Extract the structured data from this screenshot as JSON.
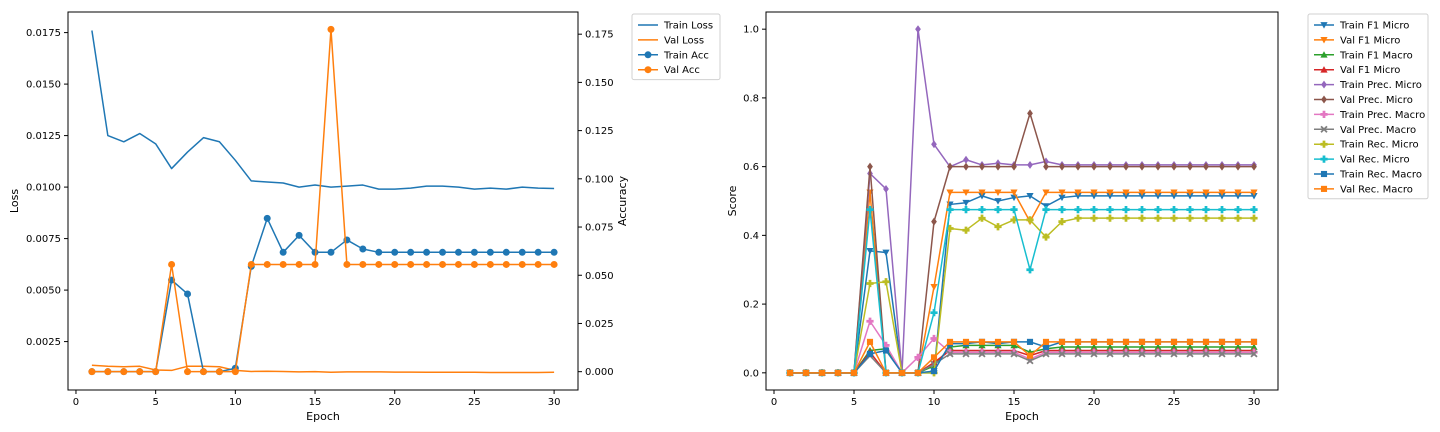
{
  "chart_data": [
    {
      "type": "line",
      "xlabel": "Epoch",
      "ylabel": "Loss",
      "ylabel_right": "Accuracy",
      "xlim": [
        -0.5,
        31.5
      ],
      "ylim": [
        0.00015,
        0.0185
      ],
      "ylim_right": [
        -0.0095,
        0.1865
      ],
      "x_ticks": [
        0,
        5,
        10,
        15,
        20,
        25,
        30
      ],
      "y_ticks": [
        0.0025,
        0.005,
        0.0075,
        0.01,
        0.0125,
        0.015,
        0.0175
      ],
      "y_ticks_right": [
        0,
        0.025,
        0.05,
        0.075,
        0.1,
        0.125,
        0.15,
        0.175
      ],
      "y_tick_labels": [
        "0.0025",
        "0.0050",
        "0.0075",
        "0.0100",
        "0.0125",
        "0.0150",
        "0.0175"
      ],
      "y_tick_labels_right": [
        "0.000",
        "0.025",
        "0.050",
        "0.075",
        "0.100",
        "0.125",
        "0.150",
        "0.175"
      ],
      "legend_position": "outside-upper-right",
      "grid": false,
      "x": [
        1,
        2,
        3,
        4,
        5,
        6,
        7,
        8,
        9,
        10,
        11,
        12,
        13,
        14,
        15,
        16,
        17,
        18,
        19,
        20,
        21,
        22,
        23,
        24,
        25,
        26,
        27,
        28,
        29,
        30
      ],
      "series": [
        {
          "name": "Train Loss",
          "axis": "left",
          "color": "#1f77b4",
          "marker": "none",
          "values": [
            0.0176,
            0.0125,
            0.0122,
            0.0126,
            0.0121,
            0.0109,
            0.0117,
            0.0124,
            0.0122,
            0.0113,
            0.0103,
            0.01025,
            0.0102,
            0.01,
            0.0101,
            0.01,
            0.01005,
            0.0101,
            0.0099,
            0.0099,
            0.00995,
            0.01005,
            0.01005,
            0.01,
            0.0099,
            0.00995,
            0.0099,
            0.01,
            0.00995,
            0.00993
          ]
        },
        {
          "name": "Val Loss",
          "axis": "left",
          "color": "#ff7f0e",
          "marker": "none",
          "values": [
            0.00135,
            0.0013,
            0.00128,
            0.0013,
            0.00112,
            0.0011,
            0.0013,
            0.0013,
            0.00128,
            0.0011,
            0.00105,
            0.00106,
            0.00105,
            0.00103,
            0.00104,
            0.00101,
            0.00103,
            0.00103,
            0.00103,
            0.00102,
            0.00102,
            0.00101,
            0.00101,
            0.00101,
            0.00101,
            0.001,
            0.001,
            0.001,
            0.001,
            0.00101
          ]
        },
        {
          "name": "Train Acc",
          "axis": "right",
          "color": "#1f77b4",
          "marker": "o",
          "values": [
            0,
            0,
            0,
            0,
            0,
            0.0475,
            0.0403,
            0,
            0,
            0.0018,
            0.0546,
            0.0795,
            0.0619,
            0.0707,
            0.0619,
            0.0619,
            0.0683,
            0.0636,
            0.0619,
            0.0619,
            0.0619,
            0.0619,
            0.0619,
            0.0619,
            0.0619,
            0.0619,
            0.0619,
            0.0619,
            0.0619,
            0.0619
          ]
        },
        {
          "name": "Val Acc",
          "axis": "right",
          "color": "#ff7f0e",
          "marker": "o",
          "values": [
            0,
            0,
            0,
            0,
            0,
            0.0556,
            0,
            0,
            0,
            0,
            0.0556,
            0.0556,
            0.0556,
            0.0556,
            0.0556,
            0.1775,
            0.0556,
            0.0556,
            0.0556,
            0.0556,
            0.0556,
            0.0556,
            0.0556,
            0.0556,
            0.0556,
            0.0556,
            0.0556,
            0.0556,
            0.0556,
            0.0556
          ]
        }
      ]
    },
    {
      "type": "line",
      "xlabel": "Epoch",
      "ylabel": "Score",
      "xlim": [
        -0.5,
        31.5
      ],
      "ylim": [
        -0.05,
        1.05
      ],
      "x_ticks": [
        0,
        5,
        10,
        15,
        20,
        25,
        30
      ],
      "y_ticks": [
        0,
        0.2,
        0.4,
        0.6,
        0.8,
        1.0
      ],
      "y_tick_labels": [
        "0.0",
        "0.2",
        "0.4",
        "0.6",
        "0.8",
        "1.0"
      ],
      "legend_position": "outside-upper-right",
      "grid": false,
      "x": [
        1,
        2,
        3,
        4,
        5,
        6,
        7,
        8,
        9,
        10,
        11,
        12,
        13,
        14,
        15,
        16,
        17,
        18,
        19,
        20,
        21,
        22,
        23,
        24,
        25,
        26,
        27,
        28,
        29,
        30
      ],
      "series": [
        {
          "name": "Train F1 Micro",
          "color": "#1f77b4",
          "marker": "v",
          "values": [
            0,
            0,
            0,
            0,
            0,
            0.355,
            0.35,
            0,
            0,
            0,
            0.49,
            0.495,
            0.515,
            0.5,
            0.51,
            0.515,
            0.485,
            0.51,
            0.515,
            0.515,
            0.515,
            0.515,
            0.515,
            0.515,
            0.515,
            0.515,
            0.515,
            0.515,
            0.515,
            0.515
          ]
        },
        {
          "name": "Val F1 Micro",
          "color": "#ff7f0e",
          "marker": "v",
          "values": [
            0,
            0,
            0,
            0,
            0,
            0.525,
            0,
            0,
            0,
            0.25,
            0.525,
            0.525,
            0.525,
            0.525,
            0.525,
            0.44,
            0.525,
            0.525,
            0.525,
            0.525,
            0.525,
            0.525,
            0.525,
            0.525,
            0.525,
            0.525,
            0.525,
            0.525,
            0.525,
            0.525
          ]
        },
        {
          "name": "Train F1 Macro",
          "color": "#2ca02c",
          "marker": "^",
          "values": [
            0,
            0,
            0,
            0,
            0,
            0.065,
            0.07,
            0,
            0,
            0.02,
            0.075,
            0.08,
            0.08,
            0.08,
            0.08,
            0.06,
            0.07,
            0.075,
            0.075,
            0.075,
            0.075,
            0.075,
            0.075,
            0.075,
            0.075,
            0.075,
            0.075,
            0.075,
            0.075,
            0.075
          ]
        },
        {
          "name": "Val F1 Micro",
          "color": "#d62728",
          "marker": "^",
          "values": [
            0,
            0,
            0,
            0,
            0,
            0.06,
            0,
            0,
            0,
            0.03,
            0.065,
            0.065,
            0.065,
            0.065,
            0.065,
            0.05,
            0.065,
            0.065,
            0.065,
            0.065,
            0.065,
            0.065,
            0.065,
            0.065,
            0.065,
            0.065,
            0.065,
            0.065,
            0.065,
            0.065
          ]
        },
        {
          "name": "Train Prec. Micro",
          "color": "#9467bd",
          "marker": "D",
          "values": [
            0,
            0,
            0,
            0,
            0,
            0.58,
            0.535,
            0,
            1.0,
            0.665,
            0.6,
            0.62,
            0.605,
            0.61,
            0.605,
            0.605,
            0.615,
            0.605,
            0.605,
            0.605,
            0.605,
            0.605,
            0.605,
            0.605,
            0.605,
            0.605,
            0.605,
            0.605,
            0.605,
            0.605
          ]
        },
        {
          "name": "Val Prec. Micro",
          "color": "#8c564b",
          "marker": "D",
          "values": [
            0,
            0,
            0,
            0,
            0,
            0.6,
            0,
            0,
            0,
            0.44,
            0.6,
            0.6,
            0.6,
            0.6,
            0.6,
            0.755,
            0.6,
            0.6,
            0.6,
            0.6,
            0.6,
            0.6,
            0.6,
            0.6,
            0.6,
            0.6,
            0.6,
            0.6,
            0.6,
            0.6
          ]
        },
        {
          "name": "Train Prec. Macro",
          "color": "#e377c2",
          "marker": "P",
          "values": [
            0,
            0,
            0,
            0,
            0,
            0.15,
            0.08,
            0,
            0.045,
            0.1,
            0.06,
            0.06,
            0.06,
            0.06,
            0.06,
            0.04,
            0.06,
            0.06,
            0.06,
            0.06,
            0.06,
            0.06,
            0.06,
            0.06,
            0.06,
            0.06,
            0.06,
            0.06,
            0.06,
            0.06
          ]
        },
        {
          "name": "Val Prec. Macro",
          "color": "#7f7f7f",
          "marker": "X",
          "values": [
            0,
            0,
            0,
            0,
            0,
            0.05,
            0,
            0,
            0,
            0.025,
            0.055,
            0.055,
            0.055,
            0.055,
            0.055,
            0.035,
            0.055,
            0.055,
            0.055,
            0.055,
            0.055,
            0.055,
            0.055,
            0.055,
            0.055,
            0.055,
            0.055,
            0.055,
            0.055,
            0.055
          ]
        },
        {
          "name": "Train Rec. Micro",
          "color": "#bcbd22",
          "marker": "P",
          "values": [
            0,
            0,
            0,
            0,
            0,
            0.26,
            0.265,
            0,
            0,
            0,
            0.42,
            0.415,
            0.45,
            0.425,
            0.445,
            0.445,
            0.395,
            0.44,
            0.45,
            0.45,
            0.45,
            0.45,
            0.45,
            0.45,
            0.45,
            0.45,
            0.45,
            0.45,
            0.45,
            0.45
          ]
        },
        {
          "name": "Val Rec. Micro",
          "color": "#17becf",
          "marker": "P",
          "values": [
            0,
            0,
            0,
            0,
            0,
            0.475,
            0,
            0,
            0,
            0.175,
            0.475,
            0.475,
            0.475,
            0.475,
            0.475,
            0.3,
            0.475,
            0.475,
            0.475,
            0.475,
            0.475,
            0.475,
            0.475,
            0.475,
            0.475,
            0.475,
            0.475,
            0.475,
            0.475,
            0.475
          ]
        },
        {
          "name": "Train Rec. Macro",
          "color": "#1f77b4",
          "marker": "s",
          "values": [
            0,
            0,
            0,
            0,
            0,
            0.055,
            0.065,
            0,
            0,
            0.005,
            0.085,
            0.085,
            0.09,
            0.085,
            0.09,
            0.09,
            0.075,
            0.09,
            0.09,
            0.09,
            0.09,
            0.09,
            0.09,
            0.09,
            0.09,
            0.09,
            0.09,
            0.09,
            0.09,
            0.09
          ]
        },
        {
          "name": "Val Rec. Macro",
          "color": "#ff7f0e",
          "marker": "s",
          "values": [
            0,
            0,
            0,
            0,
            0,
            0.09,
            0,
            0,
            0,
            0.045,
            0.09,
            0.09,
            0.09,
            0.09,
            0.09,
            0.05,
            0.09,
            0.09,
            0.09,
            0.09,
            0.09,
            0.09,
            0.09,
            0.09,
            0.09,
            0.09,
            0.09,
            0.09,
            0.09,
            0.09
          ]
        }
      ]
    }
  ]
}
